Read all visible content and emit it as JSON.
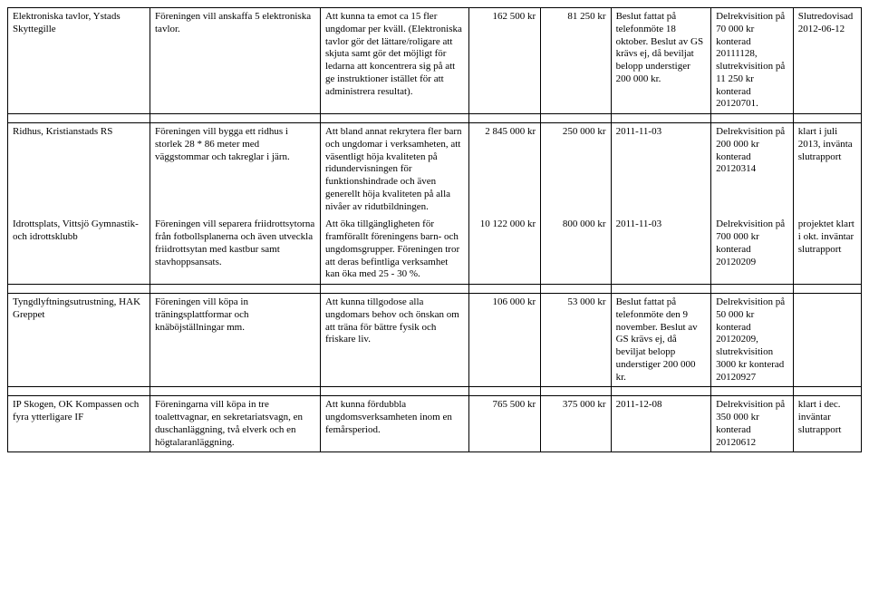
{
  "columns": {
    "count": 8
  },
  "rows": [
    {
      "c1": "Elektroniska tavlor, Ystads Skyttegille",
      "c2": "Föreningen vill anskaffa 5 elektroniska tavlor.",
      "c3": "Att kunna ta emot ca 15 fler ungdomar per kväll. (Elektroniska tavlor gör det lättare/roligare att skjuta samt gör det möjligt för ledarna att koncentrera sig på att ge instruktioner istället för att administrera resultat).",
      "c4": "162 500 kr",
      "c5": "81 250 kr",
      "c6": "Beslut fattat på telefonmöte 18 oktober. Beslut av GS krävs ej, då beviljat belopp understiger 200 000 kr.",
      "c7": "Delrekvisition på 70 000 kr konterad 20111128, slutrekvisition på 11 250 kr konterad 20120701.",
      "c8": "Slutredovisad 2012-06-12"
    },
    {
      "c1": "Ridhus, Kristianstads RS",
      "c2": "Föreningen vill bygga ett ridhus i storlek 28 * 86 meter med väggstommar och takreglar i järn.",
      "c3": "Att bland annat rekrytera fler barn och ungdomar i verksamheten, att väsentligt höja kvaliteten på ridundervisningen för funktionshindrade och även generellt höja kvaliteten på alla nivåer av ridutbildningen.",
      "c4": "2 845 000 kr",
      "c5": "250 000 kr",
      "c6": "2011-11-03",
      "c7": "Delrekvisition på 200 000 kr konterad 20120314",
      "c8": "klart i juli 2013, invänta slutrapport"
    },
    {
      "c1": "Idrottsplats, Vittsjö Gymnastik- och idrottsklubb",
      "c2": "Föreningen vill separera friidrottsytorna från fotbollsplanerna och även utveckla friidrottsytan med kastbur samt stavhoppsansats.",
      "c3": "Att öka tillgängligheten för framförallt föreningens barn- och ungdomsgrupper. Föreningen tror att deras befintliga verksamhet kan öka med 25 - 30 %.",
      "c4": "10 122 000 kr",
      "c5": "800 000 kr",
      "c6": "2011-11-03",
      "c7": "Delrekvisition på 700 000 kr konterad 20120209",
      "c8": "projektet klart i okt. inväntar slutrapport"
    },
    {
      "c1": "Tyngdlyftningsutrustning, HAK Greppet",
      "c2": "Föreningen vill köpa in träningsplattformar och knäböjställningar mm.",
      "c3": "Att kunna tillgodose alla ungdomars behov och önskan om att träna för bättre fysik och friskare liv.",
      "c4": "106 000 kr",
      "c5": "53 000 kr",
      "c6": "Beslut fattat på telefonmöte den 9 november. Beslut av GS krävs ej, då beviljat belopp understiger  200 000 kr.",
      "c7": "Delrekvisition på 50 000 kr konterad 20120209, slutrekvisition 3000 kr konterad 20120927",
      "c8": ""
    },
    {
      "c1": "IP Skogen, OK Kompassen och fyra ytterligare IF",
      "c2": "Föreningarna vill köpa in tre toalettvagnar, en sekretariatsvagn, en duschanläggning, två elverk och en högtalaranläggning.",
      "c3": "Att kunna fördubbla ungdomsverksamheten inom en femårsperiod.",
      "c4": "765 500 kr",
      "c5": "375 000 kr",
      "c6": "2011-12-08",
      "c7": "Delrekvisition på 350 000 kr konterad 20120612",
      "c8": "klart i dec. inväntar slutrapport"
    }
  ],
  "groups": [
    [
      0
    ],
    [
      1,
      2
    ],
    [
      3
    ],
    [
      4
    ]
  ]
}
